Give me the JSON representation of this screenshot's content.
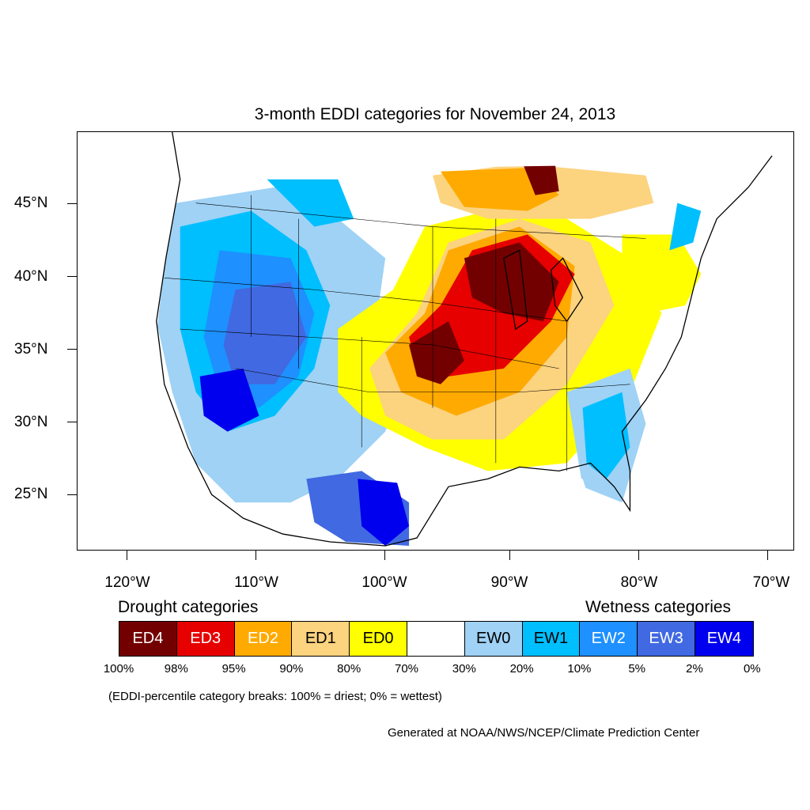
{
  "map": {
    "title": "3-month EDDI categories for November 24, 2013",
    "lat_labels": [
      "45°N",
      "40°N",
      "35°N",
      "30°N",
      "25°N"
    ],
    "lon_labels": [
      "120°W",
      "110°W",
      "100°W",
      "90°W",
      "80°W",
      "70°W"
    ]
  },
  "legend": {
    "drought_heading": "Drought categories",
    "wetness_heading": "Wetness categories",
    "categories": [
      {
        "label": "ED4",
        "color": "#730000",
        "text_color": "#ffffff"
      },
      {
        "label": "ED3",
        "color": "#e60000",
        "text_color": "#ffffff"
      },
      {
        "label": "ED2",
        "color": "#ffaa00",
        "text_color": "#ffffff"
      },
      {
        "label": "ED1",
        "color": "#fcd37f",
        "text_color": "#000000"
      },
      {
        "label": "ED0",
        "color": "#ffff00",
        "text_color": "#000000"
      },
      {
        "label": "",
        "color": "#ffffff",
        "text_color": "#000000"
      },
      {
        "label": "EW0",
        "color": "#9fd2f5",
        "text_color": "#000000"
      },
      {
        "label": "EW1",
        "color": "#00bfff",
        "text_color": "#000000"
      },
      {
        "label": "EW2",
        "color": "#1e90ff",
        "text_color": "#ffffff"
      },
      {
        "label": "EW3",
        "color": "#4169e1",
        "text_color": "#ffffff"
      },
      {
        "label": "EW4",
        "color": "#0000ee",
        "text_color": "#ffffff"
      }
    ],
    "percentiles": [
      "100%",
      "98%",
      "95%",
      "90%",
      "80%",
      "70%",
      "30%",
      "20%",
      "10%",
      "5%",
      "2%",
      "0%"
    ],
    "note": "(EDDI-percentile category breaks: 100% = driest; 0% = wettest)"
  },
  "credit": "Generated at NOAA/NWS/NCEP/Climate Prediction Center"
}
